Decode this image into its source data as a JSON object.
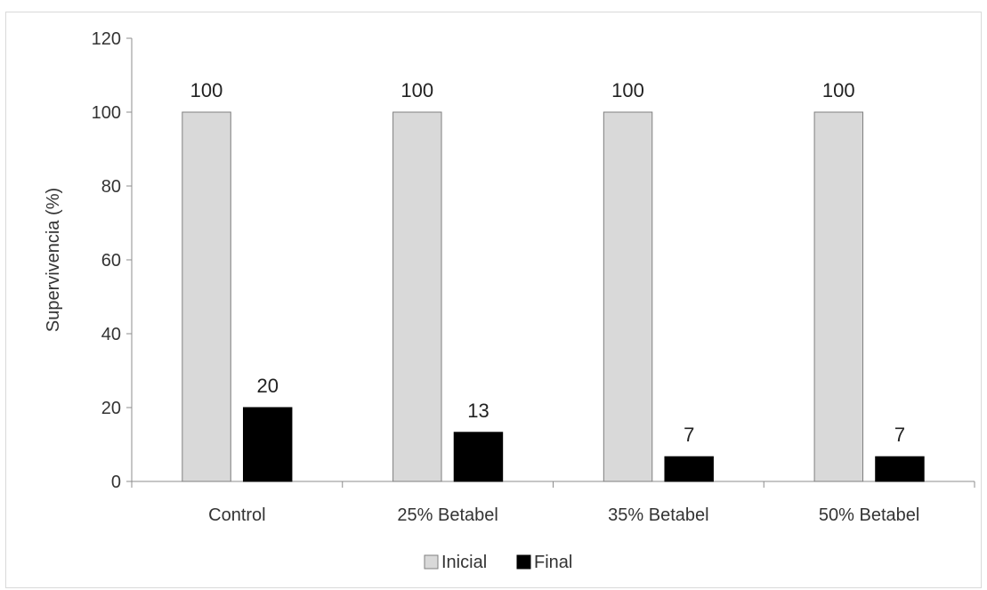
{
  "chart_data": {
    "type": "bar",
    "categories": [
      "Control",
      "25% Betabel",
      "35% Betabel",
      "50% Betabel"
    ],
    "series": [
      {
        "name": "Inicial",
        "values": [
          100,
          100,
          100,
          100
        ],
        "labels": [
          "100",
          "100",
          "100",
          "100"
        ],
        "color": "#d9d9d9",
        "stroke": "#7f7f7f"
      },
      {
        "name": "Final",
        "values": [
          20,
          13.3,
          6.7,
          6.7
        ],
        "labels": [
          "20",
          "13",
          "7",
          "7"
        ],
        "color": "#000000",
        "stroke": "#000000"
      }
    ],
    "ylabel": "Supervivencia (%)",
    "xlabel": "",
    "title": "",
    "ylim": [
      0,
      120
    ],
    "yticks": [
      "0",
      "20",
      "40",
      "60",
      "80",
      "100",
      "120"
    ],
    "grid": false,
    "legend_position": "bottom"
  }
}
